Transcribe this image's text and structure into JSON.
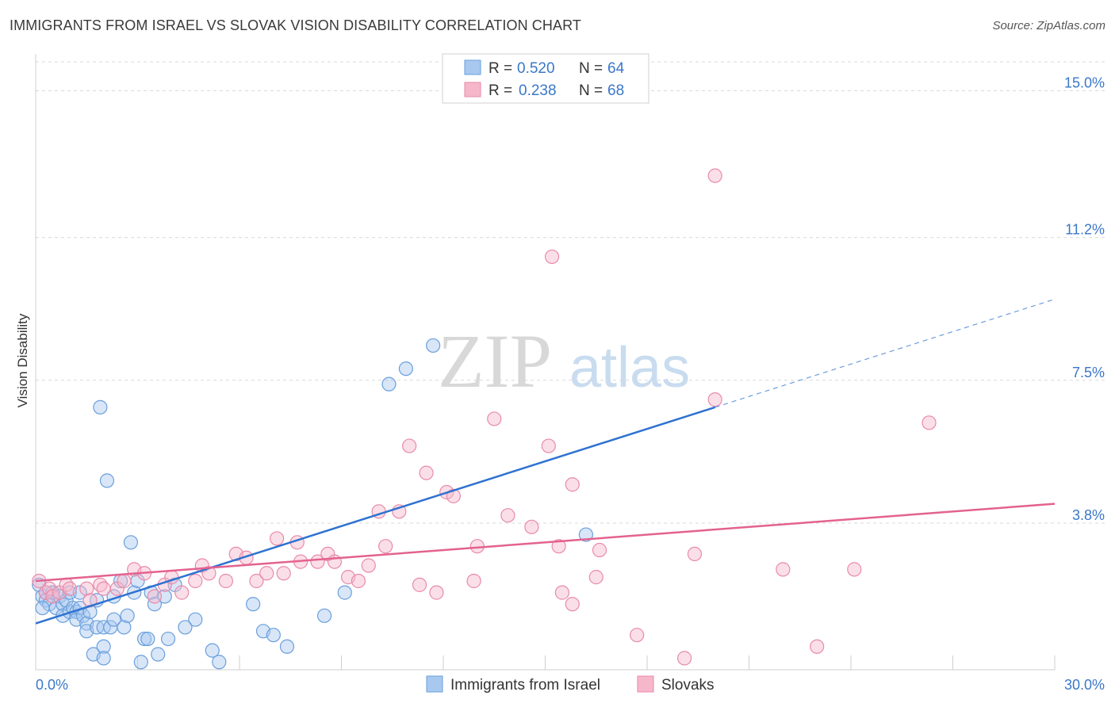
{
  "header": {
    "title": "IMMIGRANTS FROM ISRAEL VS SLOVAK VISION DISABILITY CORRELATION CHART",
    "source": "Source: ZipAtlas.com"
  },
  "watermark": {
    "zip": "ZIP",
    "atlas": "atlas"
  },
  "legend_top": {
    "rows": [
      {
        "r_label": "R = ",
        "r_value": "0.520",
        "n_label": "N = ",
        "n_value": "64"
      },
      {
        "r_label": "R = ",
        "r_value": "0.238",
        "n_label": "N = ",
        "n_value": "68"
      }
    ]
  },
  "legend_bottom": {
    "items": [
      "Immigrants from Israel",
      "Slovaks"
    ]
  },
  "colors": {
    "blue_fill": "#a8c8f0",
    "blue_stroke": "#6a9fdc",
    "blue_line": "#2f72d0",
    "pink_fill": "#f6b7cb",
    "pink_stroke": "#e88aab",
    "pink_line": "#e3628f",
    "tick_text": "#3a77c9",
    "grid": "#d9d9d9"
  },
  "chart_data": {
    "type": "scatter",
    "title": "IMMIGRANTS FROM ISRAEL VS SLOVAK VISION DISABILITY CORRELATION CHART",
    "xlabel": "",
    "ylabel": "Vision Disability",
    "xlim": [
      0,
      30
    ],
    "ylim": [
      0,
      15.75
    ],
    "x_tick_labels": [
      "0.0%",
      "30.0%"
    ],
    "y_ticks": [
      3.8,
      7.5,
      11.2,
      15.0
    ],
    "y_tick_labels": [
      "3.8%",
      "7.5%",
      "11.2%",
      "15.0%"
    ],
    "grid": true,
    "legend_position": "top-center",
    "series": [
      {
        "name": "Immigrants from Israel",
        "R": 0.52,
        "N": 64,
        "trend": {
          "x0": 0,
          "y0": 1.2,
          "x1": 20,
          "y1": 6.8,
          "dashed_to_x": 30,
          "dashed_to_y": 9.6
        },
        "points": [
          [
            0.1,
            2.2
          ],
          [
            0.2,
            1.9
          ],
          [
            0.3,
            2.0
          ],
          [
            0.3,
            1.8
          ],
          [
            0.4,
            1.7
          ],
          [
            0.5,
            2.0
          ],
          [
            0.6,
            1.6
          ],
          [
            0.7,
            1.9
          ],
          [
            0.8,
            1.7
          ],
          [
            0.8,
            1.4
          ],
          [
            0.9,
            1.8
          ],
          [
            1.0,
            2.0
          ],
          [
            1.0,
            1.5
          ],
          [
            1.1,
            1.6
          ],
          [
            1.2,
            1.5
          ],
          [
            1.2,
            1.3
          ],
          [
            1.3,
            1.6
          ],
          [
            1.4,
            1.4
          ],
          [
            1.5,
            1.2
          ],
          [
            1.5,
            1.0
          ],
          [
            1.6,
            1.5
          ],
          [
            1.7,
            0.4
          ],
          [
            1.8,
            1.8
          ],
          [
            1.8,
            1.1
          ],
          [
            1.9,
            6.8
          ],
          [
            2.0,
            0.6
          ],
          [
            2.0,
            1.1
          ],
          [
            2.1,
            4.9
          ],
          [
            2.2,
            1.1
          ],
          [
            2.3,
            1.3
          ],
          [
            2.3,
            1.9
          ],
          [
            2.5,
            2.3
          ],
          [
            2.6,
            1.1
          ],
          [
            2.7,
            1.4
          ],
          [
            2.8,
            3.3
          ],
          [
            2.9,
            2.0
          ],
          [
            3.0,
            2.3
          ],
          [
            3.1,
            0.2
          ],
          [
            3.2,
            0.8
          ],
          [
            3.3,
            0.8
          ],
          [
            3.4,
            2.0
          ],
          [
            3.6,
            0.4
          ],
          [
            3.8,
            1.9
          ],
          [
            3.9,
            0.8
          ],
          [
            4.1,
            2.2
          ],
          [
            4.7,
            1.3
          ],
          [
            5.2,
            0.5
          ],
          [
            5.4,
            0.2
          ],
          [
            6.4,
            1.7
          ],
          [
            6.7,
            1.0
          ],
          [
            7.0,
            0.9
          ],
          [
            7.4,
            0.6
          ],
          [
            8.5,
            1.4
          ],
          [
            10.4,
            7.4
          ],
          [
            10.9,
            7.8
          ],
          [
            11.7,
            8.4
          ],
          [
            16.2,
            3.5
          ],
          [
            9.1,
            2.0
          ],
          [
            0.5,
            2.0
          ],
          [
            1.3,
            2.0
          ],
          [
            2.0,
            0.3
          ],
          [
            4.4,
            1.1
          ],
          [
            0.2,
            1.6
          ],
          [
            3.5,
            1.7
          ]
        ]
      },
      {
        "name": "Slovaks",
        "R": 0.238,
        "N": 68,
        "trend": {
          "x0": 0,
          "y0": 2.3,
          "x1": 30,
          "y1": 4.3
        },
        "points": [
          [
            0.1,
            2.3
          ],
          [
            0.3,
            2.0
          ],
          [
            0.4,
            2.1
          ],
          [
            0.5,
            1.9
          ],
          [
            0.7,
            2.0
          ],
          [
            0.9,
            2.2
          ],
          [
            1.0,
            2.1
          ],
          [
            1.5,
            2.1
          ],
          [
            1.6,
            1.8
          ],
          [
            1.9,
            2.2
          ],
          [
            2.0,
            2.1
          ],
          [
            2.4,
            2.1
          ],
          [
            2.6,
            2.3
          ],
          [
            2.9,
            2.6
          ],
          [
            3.2,
            2.5
          ],
          [
            3.5,
            1.9
          ],
          [
            3.8,
            2.2
          ],
          [
            4.0,
            2.4
          ],
          [
            4.3,
            2.0
          ],
          [
            4.7,
            2.3
          ],
          [
            4.9,
            2.7
          ],
          [
            5.1,
            2.5
          ],
          [
            5.6,
            2.3
          ],
          [
            5.9,
            3.0
          ],
          [
            6.2,
            2.9
          ],
          [
            6.5,
            2.3
          ],
          [
            6.8,
            2.5
          ],
          [
            7.1,
            3.4
          ],
          [
            7.3,
            2.5
          ],
          [
            7.7,
            3.3
          ],
          [
            7.8,
            2.8
          ],
          [
            8.3,
            2.8
          ],
          [
            8.6,
            3.0
          ],
          [
            8.8,
            2.8
          ],
          [
            9.2,
            2.4
          ],
          [
            9.5,
            2.3
          ],
          [
            9.8,
            2.7
          ],
          [
            10.1,
            4.1
          ],
          [
            10.3,
            3.2
          ],
          [
            10.7,
            4.1
          ],
          [
            11.0,
            5.8
          ],
          [
            11.3,
            2.2
          ],
          [
            11.5,
            5.1
          ],
          [
            11.8,
            2.0
          ],
          [
            12.1,
            4.6
          ],
          [
            12.3,
            4.5
          ],
          [
            12.9,
            2.3
          ],
          [
            13.0,
            3.2
          ],
          [
            13.5,
            6.5
          ],
          [
            13.9,
            4.0
          ],
          [
            14.6,
            3.7
          ],
          [
            15.1,
            5.8
          ],
          [
            15.4,
            3.2
          ],
          [
            15.5,
            2.0
          ],
          [
            15.8,
            4.8
          ],
          [
            15.8,
            1.7
          ],
          [
            16.5,
            2.4
          ],
          [
            16.6,
            3.1
          ],
          [
            17.7,
            0.9
          ],
          [
            19.1,
            0.3
          ],
          [
            19.4,
            3.0
          ],
          [
            20.0,
            12.8
          ],
          [
            15.2,
            10.7
          ],
          [
            20.0,
            7.0
          ],
          [
            22.0,
            2.6
          ],
          [
            23.0,
            0.6
          ],
          [
            24.1,
            2.6
          ],
          [
            26.3,
            6.4
          ]
        ]
      }
    ]
  }
}
